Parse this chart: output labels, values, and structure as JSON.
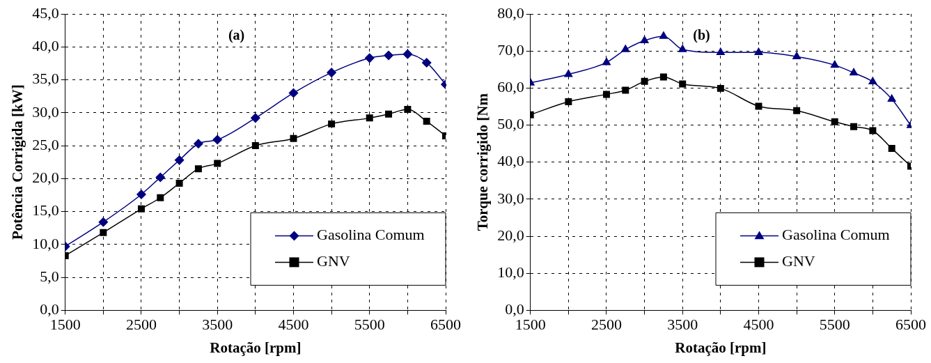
{
  "chart_data": [
    {
      "type": "line",
      "xlabel": "Rotação [rpm]",
      "ylabel": "Potência Corrigida [kW]",
      "annotations": [
        "(a)"
      ],
      "x": [
        1500,
        2000,
        2500,
        2750,
        3000,
        3250,
        3500,
        4000,
        4500,
        5000,
        5500,
        5750,
        6000,
        6250,
        6500
      ],
      "series": [
        {
          "name": "Gasolina Comum",
          "color": "#000080",
          "marker": "diamond",
          "values": [
            9.7,
            13.4,
            17.6,
            20.2,
            22.8,
            25.3,
            25.9,
            29.2,
            33.0,
            36.1,
            38.3,
            38.7,
            38.9,
            37.6,
            34.3
          ]
        },
        {
          "name": "GNV",
          "color": "#000000",
          "marker": "square",
          "values": [
            8.3,
            11.8,
            15.4,
            17.1,
            19.3,
            21.5,
            22.3,
            25.0,
            26.1,
            28.3,
            29.2,
            29.8,
            30.5,
            28.7,
            26.5
          ]
        }
      ],
      "xlim": [
        1500,
        6500
      ],
      "xticks": [
        1500,
        {
          "value": 2000,
          "label": null
        },
        2500,
        {
          "value": 3000,
          "label": null
        },
        3500,
        {
          "value": 4000,
          "label": null
        },
        4500,
        {
          "value": 5000,
          "label": null
        },
        5500,
        {
          "value": 6000,
          "label": null
        },
        6500
      ],
      "ylim": [
        0,
        45
      ],
      "yticks": [
        {
          "value": 0,
          "label": "0,0"
        },
        {
          "value": 5,
          "label": "5,0"
        },
        {
          "value": 10,
          "label": "10,0"
        },
        {
          "value": 15,
          "label": "15,0"
        },
        {
          "value": 20,
          "label": "20,0"
        },
        {
          "value": 25,
          "label": "25,0"
        },
        {
          "value": 30,
          "label": "30,0"
        },
        {
          "value": 35,
          "label": "35,0"
        },
        {
          "value": 40,
          "label": "40,0"
        },
        {
          "value": 45,
          "label": "45,0"
        }
      ],
      "grid": true,
      "legend": "bottom right",
      "line_style": "solid"
    },
    {
      "type": "line",
      "xlabel": "Rotação [rpm]",
      "ylabel": "Torque corrigido [Nm",
      "annotations": [
        "(b)"
      ],
      "x": [
        1500,
        2000,
        2500,
        2750,
        3000,
        3250,
        3500,
        4000,
        4500,
        5000,
        5500,
        5750,
        6000,
        6250,
        6500
      ],
      "series": [
        {
          "name": "Gasolina Comum",
          "color": "#000080",
          "marker": "triangle",
          "values": [
            61.4,
            63.7,
            66.9,
            70.4,
            72.8,
            74.0,
            70.4,
            69.6,
            69.6,
            68.5,
            66.2,
            64.1,
            61.7,
            57.0,
            49.9
          ]
        },
        {
          "name": "GNV",
          "color": "#000000",
          "marker": "square",
          "values": [
            52.8,
            56.3,
            58.3,
            59.4,
            61.8,
            63.0,
            61.1,
            59.9,
            55.1,
            53.9,
            50.9,
            49.6,
            48.5,
            43.7,
            38.9
          ]
        }
      ],
      "xlim": [
        1500,
        6500
      ],
      "xticks": [
        1500,
        {
          "value": 2000,
          "label": null
        },
        2500,
        {
          "value": 3000,
          "label": null
        },
        3500,
        {
          "value": 4000,
          "label": null
        },
        4500,
        {
          "value": 5000,
          "label": null
        },
        5500,
        {
          "value": 6000,
          "label": null
        },
        6500
      ],
      "ylim": [
        0,
        80
      ],
      "yticks": [
        {
          "value": 0,
          "label": "0,0"
        },
        {
          "value": 10,
          "label": "10,0"
        },
        {
          "value": 20,
          "label": "20,0"
        },
        {
          "value": 30,
          "label": "30,0"
        },
        {
          "value": 40,
          "label": "40,0"
        },
        {
          "value": 50,
          "label": "50,0"
        },
        {
          "value": 60,
          "label": "60,0"
        },
        {
          "value": 70,
          "label": "70,0"
        },
        {
          "value": 80,
          "label": "80,0"
        }
      ],
      "grid": true,
      "legend": "bottom right",
      "line_style": "solid"
    }
  ]
}
